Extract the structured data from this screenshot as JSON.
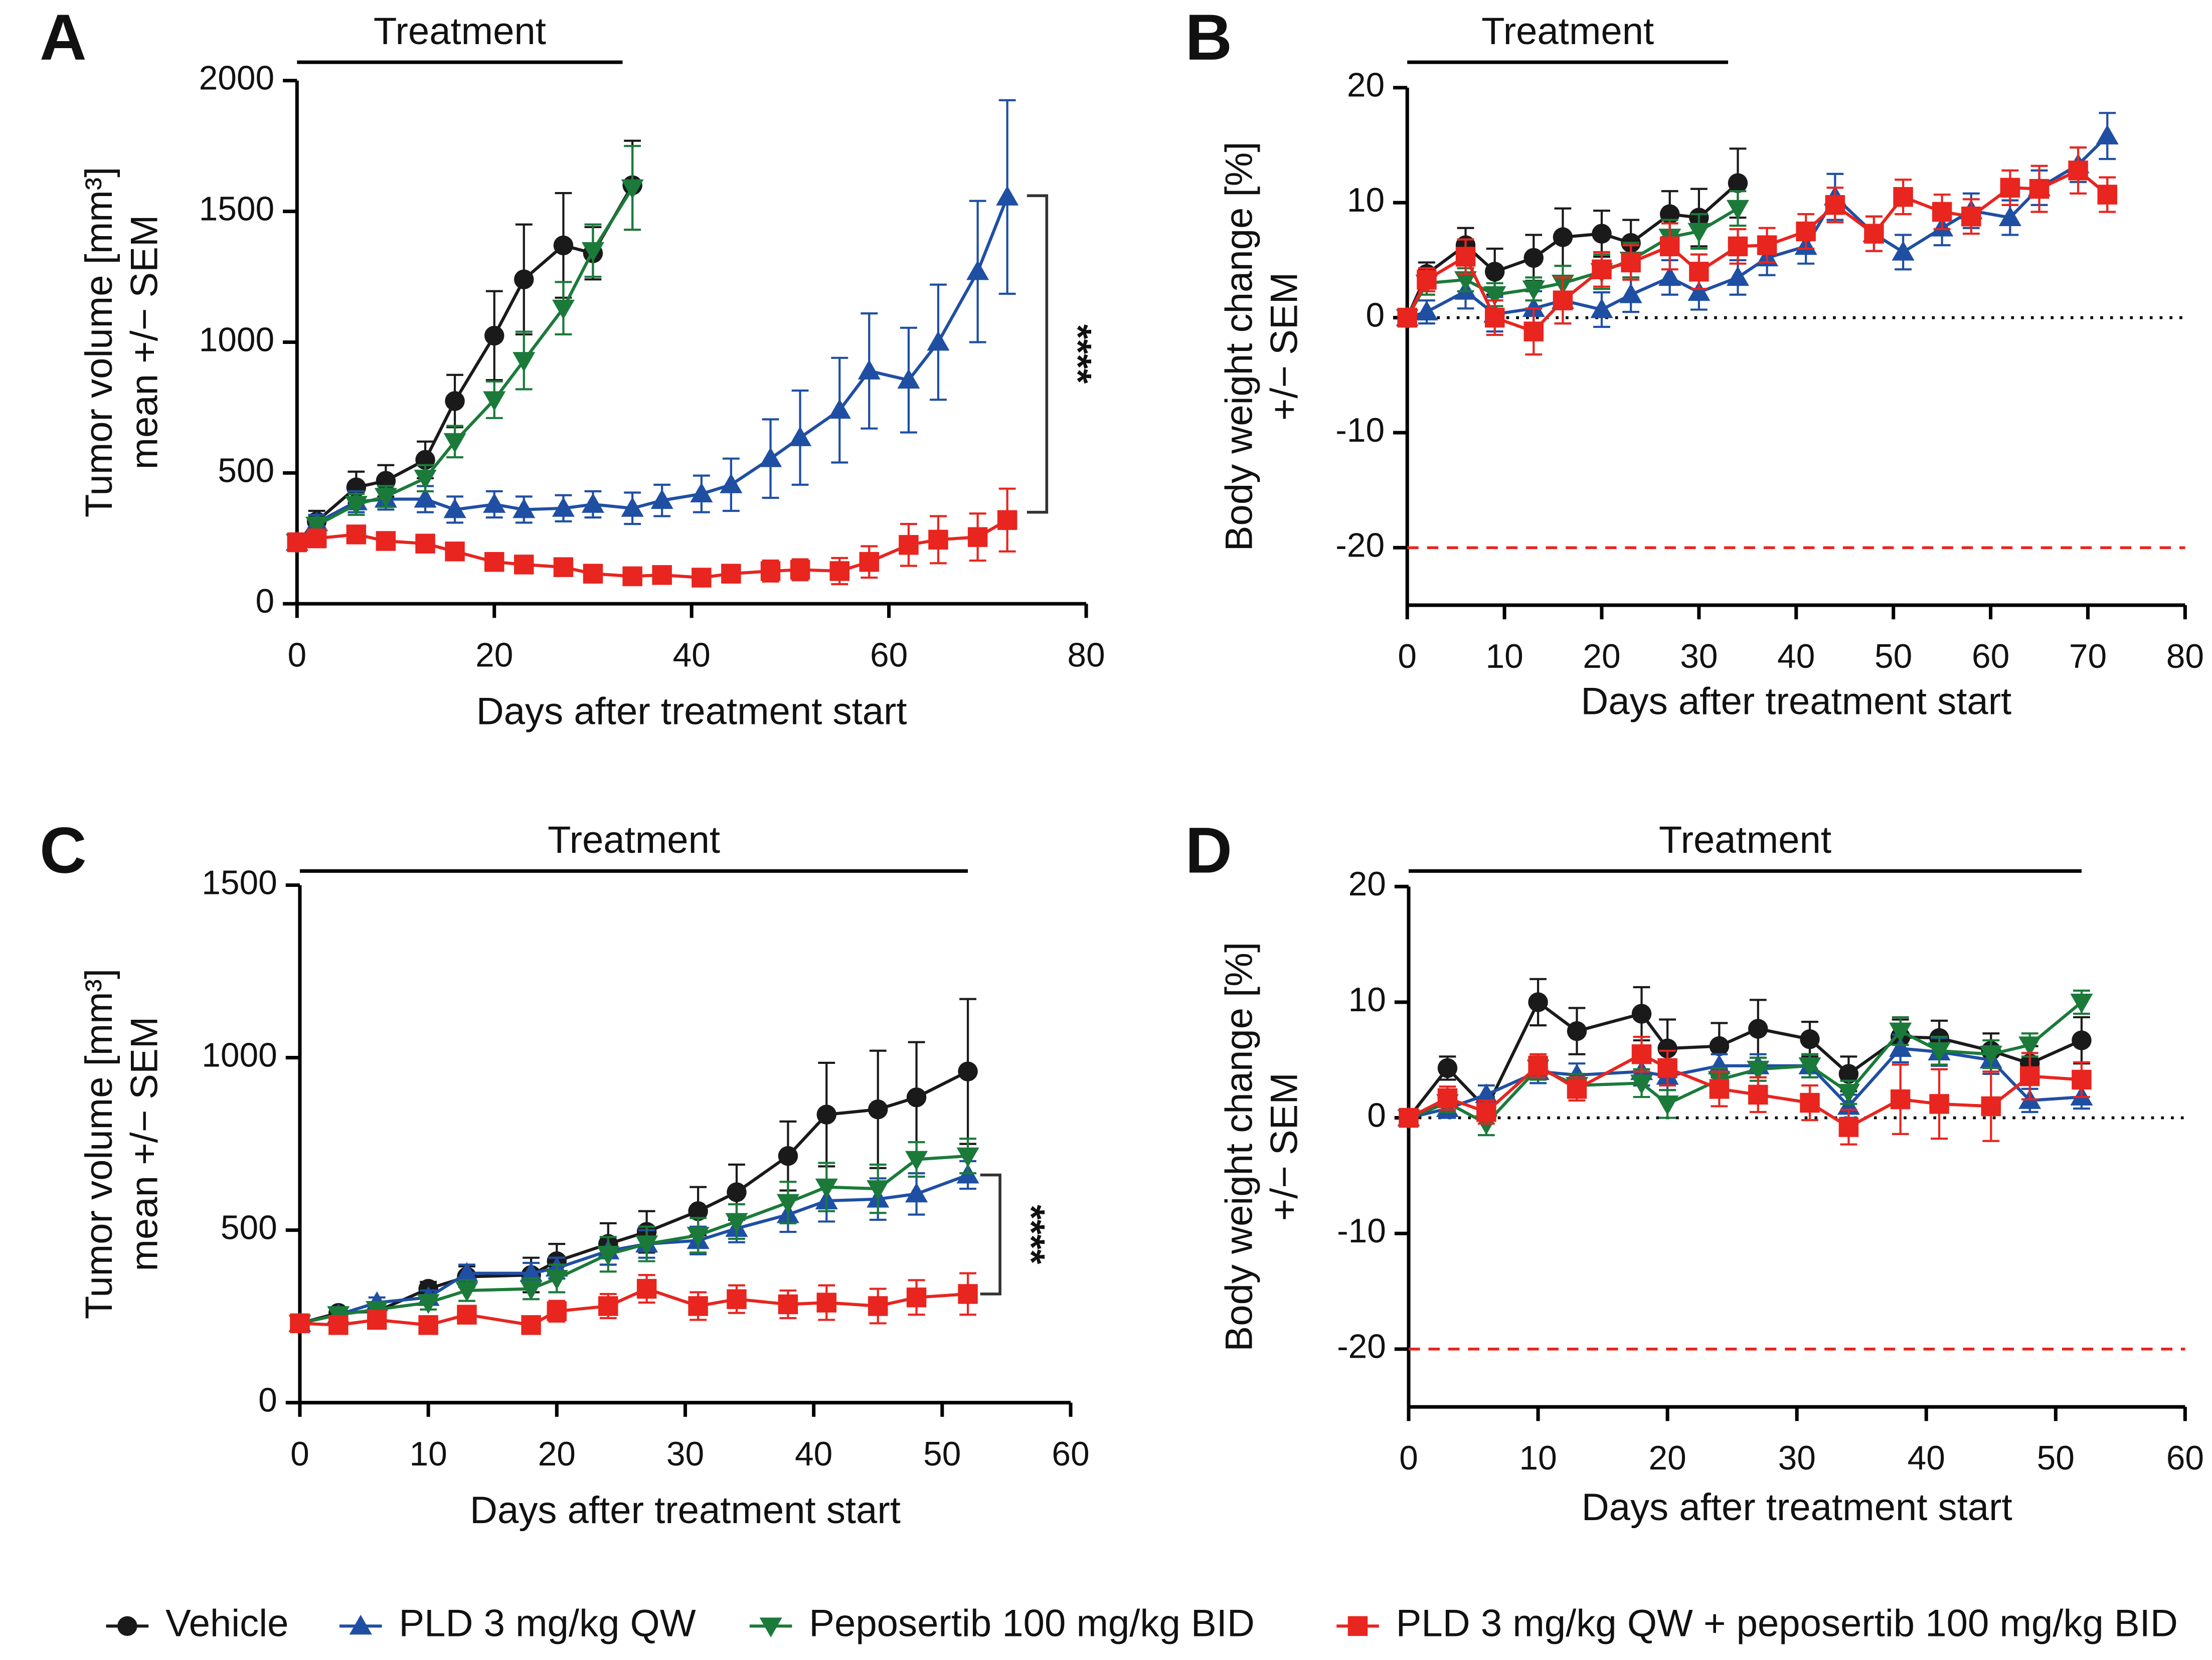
{
  "legend": [
    {
      "name": "Vehicle",
      "color": "#1a1a1a",
      "marker": "circle"
    },
    {
      "name": "PLD 3 mg/kg QW",
      "color": "#1f4fa3",
      "marker": "triangle-up"
    },
    {
      "name": "Peposertib 100 mg/kg BID",
      "color": "#1b7a3a",
      "marker": "triangle-down"
    },
    {
      "name": "PLD 3 mg/kg QW + peposertib 100 mg/kg BID",
      "color": "#e8251f",
      "marker": "square"
    }
  ],
  "chart_data": [
    {
      "type": "line",
      "panel": "A",
      "xlabel": "Days after treatment start",
      "ylabel": [
        "Tumor volume [mm³]",
        "mean +/− SEM"
      ],
      "xlim": [
        0,
        80
      ],
      "ylim": [
        0,
        2000
      ],
      "xticks": [
        0,
        20,
        40,
        60,
        80
      ],
      "yticks": [
        0,
        500,
        1000,
        1500,
        2000
      ],
      "treatment": {
        "label": "Treatment",
        "days": [
          0,
          33
        ]
      },
      "significance": {
        "label": "****",
        "x": 76,
        "range": [
          1560,
          350
        ]
      },
      "series": [
        {
          "x": [
            0,
            2,
            6,
            9,
            13,
            16,
            20,
            23,
            27,
            30,
            34
          ],
          "values": [
            235,
            315,
            445,
            470,
            550,
            775,
            1025,
            1240,
            1370,
            1340,
            1600
          ],
          "errors": [
            20,
            40,
            60,
            60,
            70,
            100,
            170,
            210,
            200,
            100,
            170
          ]
        },
        {
          "x": [
            0,
            2,
            6,
            9,
            13,
            16,
            20,
            23,
            27,
            30,
            34,
            37,
            41,
            44,
            48,
            51,
            55,
            58,
            62,
            65,
            69,
            72
          ],
          "values": [
            235,
            310,
            390,
            400,
            400,
            360,
            380,
            360,
            365,
            380,
            365,
            395,
            420,
            455,
            555,
            635,
            740,
            890,
            855,
            1000,
            1270,
            1555
          ],
          "errors": [
            20,
            30,
            40,
            40,
            50,
            50,
            50,
            50,
            50,
            50,
            60,
            60,
            70,
            100,
            150,
            180,
            200,
            220,
            200,
            220,
            270,
            370
          ]
        },
        {
          "x": [
            0,
            2,
            6,
            9,
            13,
            16,
            20,
            23,
            27,
            30,
            34
          ],
          "values": [
            235,
            300,
            380,
            410,
            480,
            620,
            780,
            930,
            1130,
            1350,
            1590
          ],
          "errors": [
            20,
            30,
            40,
            40,
            50,
            60,
            70,
            110,
            100,
            100,
            160
          ]
        },
        {
          "x": [
            0,
            2,
            6,
            9,
            13,
            16,
            20,
            23,
            27,
            30,
            34,
            37,
            41,
            44,
            48,
            51,
            55,
            58,
            62,
            65,
            69,
            72
          ],
          "values": [
            235,
            250,
            265,
            240,
            230,
            200,
            160,
            150,
            140,
            115,
            105,
            110,
            100,
            115,
            125,
            130,
            125,
            160,
            225,
            245,
            255,
            320
          ],
          "errors": [
            20,
            20,
            30,
            30,
            30,
            30,
            30,
            30,
            30,
            30,
            30,
            30,
            30,
            30,
            40,
            40,
            50,
            60,
            80,
            90,
            90,
            120
          ]
        }
      ]
    },
    {
      "type": "line",
      "panel": "B",
      "xlabel": "Days after treatment start",
      "ylabel": [
        "Body weight change [%]",
        "+/− SEM"
      ],
      "xlim": [
        0,
        80
      ],
      "ylim": [
        -25,
        20
      ],
      "xticks": [
        0,
        10,
        20,
        30,
        40,
        50,
        60,
        70,
        80
      ],
      "yticks": [
        -20,
        -10,
        0,
        10,
        20
      ],
      "treatment": {
        "label": "Treatment",
        "days": [
          0,
          33
        ]
      },
      "reference_lines": [
        {
          "value": 0,
          "style": "dotted",
          "color": "#000000"
        },
        {
          "value": -20,
          "style": "dashed",
          "color": "#e8251f"
        }
      ],
      "series": [
        {
          "x": [
            0,
            2,
            6,
            9,
            13,
            16,
            20,
            23,
            27,
            30,
            34
          ],
          "values": [
            0,
            3.8,
            6.3,
            4.0,
            5.2,
            7.0,
            7.3,
            6.5,
            9.0,
            8.7,
            11.7
          ],
          "errors": [
            0.5,
            1,
            1.5,
            2,
            2,
            2.5,
            2,
            2,
            2,
            2.5,
            3
          ]
        },
        {
          "x": [
            0,
            2,
            6,
            9,
            13,
            16,
            20,
            23,
            27,
            30,
            34,
            37,
            41,
            44,
            48,
            51,
            55,
            58,
            62,
            65,
            69,
            72
          ],
          "values": [
            0,
            0.5,
            2.3,
            0.3,
            0.8,
            1.5,
            0.7,
            2.0,
            3.5,
            2.2,
            3.5,
            5.2,
            6.2,
            10.5,
            7.3,
            5.7,
            7.8,
            9.3,
            8.7,
            11.3,
            13.3,
            15.8
          ],
          "errors": [
            0.5,
            1,
            1.5,
            1.5,
            1.5,
            2,
            1.5,
            1.5,
            1.5,
            1.5,
            1.5,
            1.5,
            1.5,
            2,
            1.5,
            1.5,
            1.5,
            1.5,
            1.5,
            1.5,
            1.5,
            2
          ]
        },
        {
          "x": [
            0,
            2,
            6,
            9,
            13,
            16,
            20,
            23,
            27,
            30,
            34
          ],
          "values": [
            0,
            3.0,
            3.3,
            2.0,
            2.5,
            3.0,
            4.0,
            5.0,
            7.0,
            7.5,
            9.5
          ],
          "errors": [
            0.5,
            1,
            1,
            1,
            1,
            1.5,
            1.5,
            1.5,
            1.5,
            1.5,
            1.5
          ]
        },
        {
          "x": [
            0,
            2,
            6,
            9,
            13,
            16,
            20,
            23,
            27,
            30,
            34,
            37,
            41,
            44,
            48,
            51,
            55,
            58,
            62,
            65,
            69,
            72
          ],
          "values": [
            0,
            3.3,
            5.3,
            0,
            -1.2,
            1.5,
            4.2,
            4.8,
            6.2,
            4.0,
            6.2,
            6.3,
            7.5,
            9.8,
            7.3,
            10.5,
            9.2,
            8.8,
            11.3,
            11.2,
            12.8,
            10.7
          ],
          "errors": [
            0.5,
            1,
            1.5,
            1.5,
            2,
            2,
            1.5,
            1.5,
            2,
            1.5,
            1.5,
            1.5,
            1.5,
            1.5,
            1.5,
            1.5,
            1.5,
            1.5,
            1.5,
            2,
            2,
            1.5
          ]
        }
      ]
    },
    {
      "type": "line",
      "panel": "C",
      "xlabel": "Days after treatment start",
      "ylabel": [
        "Tumor volume [mm³]",
        "mean +/− SEM"
      ],
      "xlim": [
        0,
        60
      ],
      "ylim": [
        0,
        1500
      ],
      "xticks": [
        0,
        10,
        20,
        30,
        40,
        50,
        60
      ],
      "yticks": [
        0,
        500,
        1000,
        1500
      ],
      "treatment": {
        "label": "Treatment",
        "days": [
          0,
          52
        ]
      },
      "significance": {
        "label": "****",
        "x": 54.5,
        "range": [
          660,
          315
        ]
      },
      "series": [
        {
          "x": [
            0,
            3,
            6,
            10,
            13,
            18,
            20,
            24,
            27,
            31,
            34,
            38,
            41,
            45,
            48,
            52
          ],
          "values": [
            230,
            260,
            265,
            330,
            365,
            370,
            410,
            460,
            495,
            555,
            610,
            715,
            835,
            850,
            885,
            960
          ],
          "errors": [
            10,
            15,
            15,
            20,
            30,
            50,
            50,
            60,
            60,
            70,
            80,
            100,
            150,
            170,
            160,
            210
          ]
        },
        {
          "x": [
            0,
            3,
            6,
            10,
            13,
            18,
            20,
            24,
            27,
            31,
            34,
            38,
            41,
            45,
            48,
            52
          ],
          "values": [
            230,
            255,
            290,
            305,
            375,
            375,
            390,
            440,
            460,
            470,
            505,
            545,
            585,
            590,
            605,
            660
          ],
          "errors": [
            10,
            15,
            15,
            20,
            25,
            30,
            30,
            40,
            40,
            40,
            40,
            50,
            60,
            60,
            60,
            40
          ]
        },
        {
          "x": [
            0,
            3,
            6,
            10,
            13,
            18,
            20,
            24,
            27,
            31,
            34,
            38,
            41,
            45,
            48,
            52
          ],
          "values": [
            230,
            255,
            270,
            290,
            325,
            330,
            360,
            430,
            460,
            485,
            525,
            580,
            625,
            620,
            705,
            715
          ],
          "errors": [
            10,
            15,
            15,
            20,
            30,
            30,
            40,
            50,
            50,
            50,
            50,
            60,
            70,
            70,
            50,
            50
          ]
        },
        {
          "x": [
            0,
            3,
            6,
            10,
            13,
            18,
            20,
            24,
            27,
            31,
            34,
            38,
            41,
            45,
            48,
            52
          ],
          "values": [
            230,
            225,
            240,
            225,
            255,
            225,
            265,
            280,
            330,
            280,
            300,
            285,
            290,
            280,
            305,
            315
          ],
          "errors": [
            10,
            10,
            15,
            15,
            25,
            25,
            30,
            35,
            40,
            40,
            40,
            40,
            50,
            50,
            50,
            60
          ]
        }
      ]
    },
    {
      "type": "line",
      "panel": "D",
      "xlabel": "Days after treatment start",
      "ylabel": [
        "Body weight change [%]",
        "+/− SEM"
      ],
      "xlim": [
        0,
        60
      ],
      "ylim": [
        -25,
        20
      ],
      "xticks": [
        0,
        10,
        20,
        30,
        40,
        50,
        60
      ],
      "yticks": [
        -20,
        -10,
        0,
        10,
        20
      ],
      "treatment": {
        "label": "Treatment",
        "days": [
          0,
          52
        ]
      },
      "reference_lines": [
        {
          "value": 0,
          "style": "dotted",
          "color": "#000000"
        },
        {
          "value": -20,
          "style": "dashed",
          "color": "#e8251f"
        }
      ],
      "series": [
        {
          "x": [
            0,
            3,
            6,
            10,
            13,
            18,
            20,
            24,
            27,
            31,
            34,
            38,
            41,
            45,
            48,
            52
          ],
          "values": [
            0,
            4.3,
            0.8,
            10,
            7.5,
            9,
            6,
            6.2,
            7.7,
            6.8,
            3.8,
            7.0,
            6.9,
            5.8,
            4.7,
            6.7
          ],
          "errors": [
            0.3,
            1,
            1,
            2,
            2,
            2.3,
            2.5,
            2,
            2.5,
            1.5,
            1.5,
            1.5,
            1.5,
            1.5,
            1.5,
            2
          ]
        },
        {
          "x": [
            0,
            3,
            6,
            10,
            13,
            18,
            20,
            24,
            27,
            31,
            34,
            38,
            41,
            45,
            48,
            52
          ],
          "values": [
            0,
            0.8,
            2.0,
            4.0,
            3.7,
            4.0,
            3.6,
            4.5,
            4.5,
            4.5,
            1.0,
            6.0,
            5.7,
            5.0,
            1.5,
            1.8
          ],
          "errors": [
            0.3,
            0.8,
            0.8,
            1,
            1,
            1.2,
            1.2,
            1,
            1,
            1,
            1,
            1.2,
            1.2,
            1.2,
            1,
            1
          ]
        },
        {
          "x": [
            0,
            3,
            6,
            10,
            13,
            18,
            20,
            24,
            27,
            31,
            34,
            38,
            41,
            45,
            48,
            52
          ],
          "values": [
            0,
            1.3,
            -0.5,
            4.3,
            2.8,
            3.0,
            1.2,
            3.3,
            4.2,
            4.5,
            2.2,
            7.5,
            5.8,
            5.5,
            6.3,
            10.0
          ],
          "errors": [
            0.3,
            0.8,
            1,
            1,
            1,
            1.2,
            1.2,
            1,
            1,
            1,
            1,
            1.2,
            1.2,
            1.2,
            1,
            1
          ]
        },
        {
          "x": [
            0,
            3,
            6,
            10,
            13,
            18,
            20,
            24,
            27,
            31,
            34,
            38,
            41,
            45,
            48,
            52
          ],
          "values": [
            0,
            1.7,
            0.5,
            4.5,
            2.5,
            5.5,
            4.3,
            2.5,
            2.0,
            1.3,
            -0.8,
            1.6,
            1.2,
            1.0,
            3.6,
            3.3
          ],
          "errors": [
            0.3,
            1,
            1,
            1,
            1,
            1.5,
            1.5,
            1.5,
            1.5,
            1.5,
            1.5,
            3,
            3,
            3,
            2,
            1.5
          ]
        }
      ]
    }
  ]
}
